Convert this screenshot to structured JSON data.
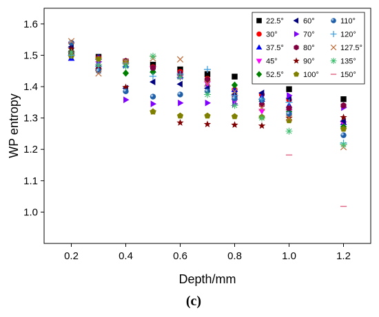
{
  "chart_data": {
    "type": "scatter",
    "xlabel": "Depth/mm",
    "ylabel": "WP entropy",
    "xlim": [
      0.1,
      1.3
    ],
    "ylim": [
      0.9,
      1.65
    ],
    "x_ticks": [
      "0.2",
      "0.4",
      "0.6",
      "0.8",
      "1.0",
      "1.2"
    ],
    "y_ticks": [
      "1.0",
      "1.1",
      "1.2",
      "1.3",
      "1.4",
      "1.5",
      "1.6"
    ],
    "grid": false,
    "legend_position": "top-right",
    "panel_label": "(c)",
    "x": [
      0.2,
      0.3,
      0.4,
      0.5,
      0.6,
      0.7,
      0.8,
      0.9,
      1.0,
      1.2
    ],
    "series": [
      {
        "name": "22.5°",
        "marker": "square",
        "color": "#000000",
        "values": [
          1.505,
          1.495,
          1.48,
          1.47,
          1.455,
          1.44,
          1.432,
          1.42,
          1.392,
          1.36
        ]
      },
      {
        "name": "30°",
        "marker": "circle",
        "color": "#ff0000",
        "values": [
          1.54,
          1.492,
          1.478,
          1.462,
          1.447,
          1.425,
          1.39,
          1.375,
          1.358,
          1.338
        ]
      },
      {
        "name": "37.5°",
        "marker": "triangle-up",
        "color": "#0000ff",
        "values": [
          1.49,
          1.493,
          1.468,
          1.452,
          1.433,
          1.408,
          1.39,
          1.366,
          1.34,
          1.285
        ]
      },
      {
        "name": "45°",
        "marker": "triangle-down",
        "color": "#ff00ff",
        "values": [
          1.535,
          1.473,
          1.478,
          1.458,
          1.43,
          1.41,
          1.353,
          1.322,
          1.32,
          1.282
        ]
      },
      {
        "name": "52.5°",
        "marker": "diamond",
        "color": "#008000",
        "values": [
          1.512,
          1.458,
          1.443,
          1.447,
          1.438,
          1.422,
          1.405,
          1.353,
          1.32,
          1.272
        ]
      },
      {
        "name": "60°",
        "marker": "triangle-left",
        "color": "#000080",
        "values": [
          1.527,
          1.452,
          1.395,
          1.415,
          1.408,
          1.395,
          1.375,
          1.38,
          1.363,
          1.29
        ]
      },
      {
        "name": "70°",
        "marker": "triangle-right",
        "color": "#8000ff",
        "values": [
          1.5,
          1.48,
          1.358,
          1.345,
          1.348,
          1.348,
          1.345,
          1.353,
          1.372,
          1.333
        ]
      },
      {
        "name": "80°",
        "marker": "hexagon",
        "color": "#800040",
        "values": [
          1.51,
          1.462,
          1.482,
          1.46,
          1.442,
          1.422,
          1.367,
          1.342,
          1.332,
          1.34
        ]
      },
      {
        "name": "90°",
        "marker": "star",
        "color": "#800000",
        "values": [
          1.52,
          1.452,
          1.398,
          1.32,
          1.285,
          1.28,
          1.278,
          1.275,
          1.3,
          1.302
        ]
      },
      {
        "name": "100°",
        "marker": "pentagon",
        "color": "#808000",
        "values": [
          1.498,
          1.488,
          1.478,
          1.32,
          1.307,
          1.307,
          1.305,
          1.303,
          1.292,
          1.265
        ]
      },
      {
        "name": "110°",
        "marker": "sphere",
        "color": "#1f5fa8",
        "values": [
          1.54,
          1.45,
          1.385,
          1.368,
          1.375,
          1.385,
          1.362,
          1.358,
          1.313,
          1.245
        ]
      },
      {
        "name": "120°",
        "marker": "plus",
        "color": "#40a0e0",
        "values": [
          1.5,
          1.465,
          1.475,
          1.433,
          1.44,
          1.455,
          1.372,
          1.36,
          1.35,
          1.22
        ]
      },
      {
        "name": "127.5°",
        "marker": "cross",
        "color": "#c07040",
        "values": [
          1.545,
          1.442,
          1.48,
          1.49,
          1.487,
          1.41,
          1.385,
          1.333,
          1.3,
          1.207
        ]
      },
      {
        "name": "135°",
        "marker": "asterisk",
        "color": "#40c070",
        "values": [
          1.51,
          1.47,
          1.465,
          1.497,
          1.43,
          1.375,
          1.34,
          1.3,
          1.258,
          1.215
        ]
      },
      {
        "name": "150°",
        "marker": "dash",
        "color": "#e06080",
        "values": [
          null,
          null,
          null,
          null,
          null,
          null,
          null,
          null,
          1.182,
          1.018
        ]
      }
    ]
  }
}
